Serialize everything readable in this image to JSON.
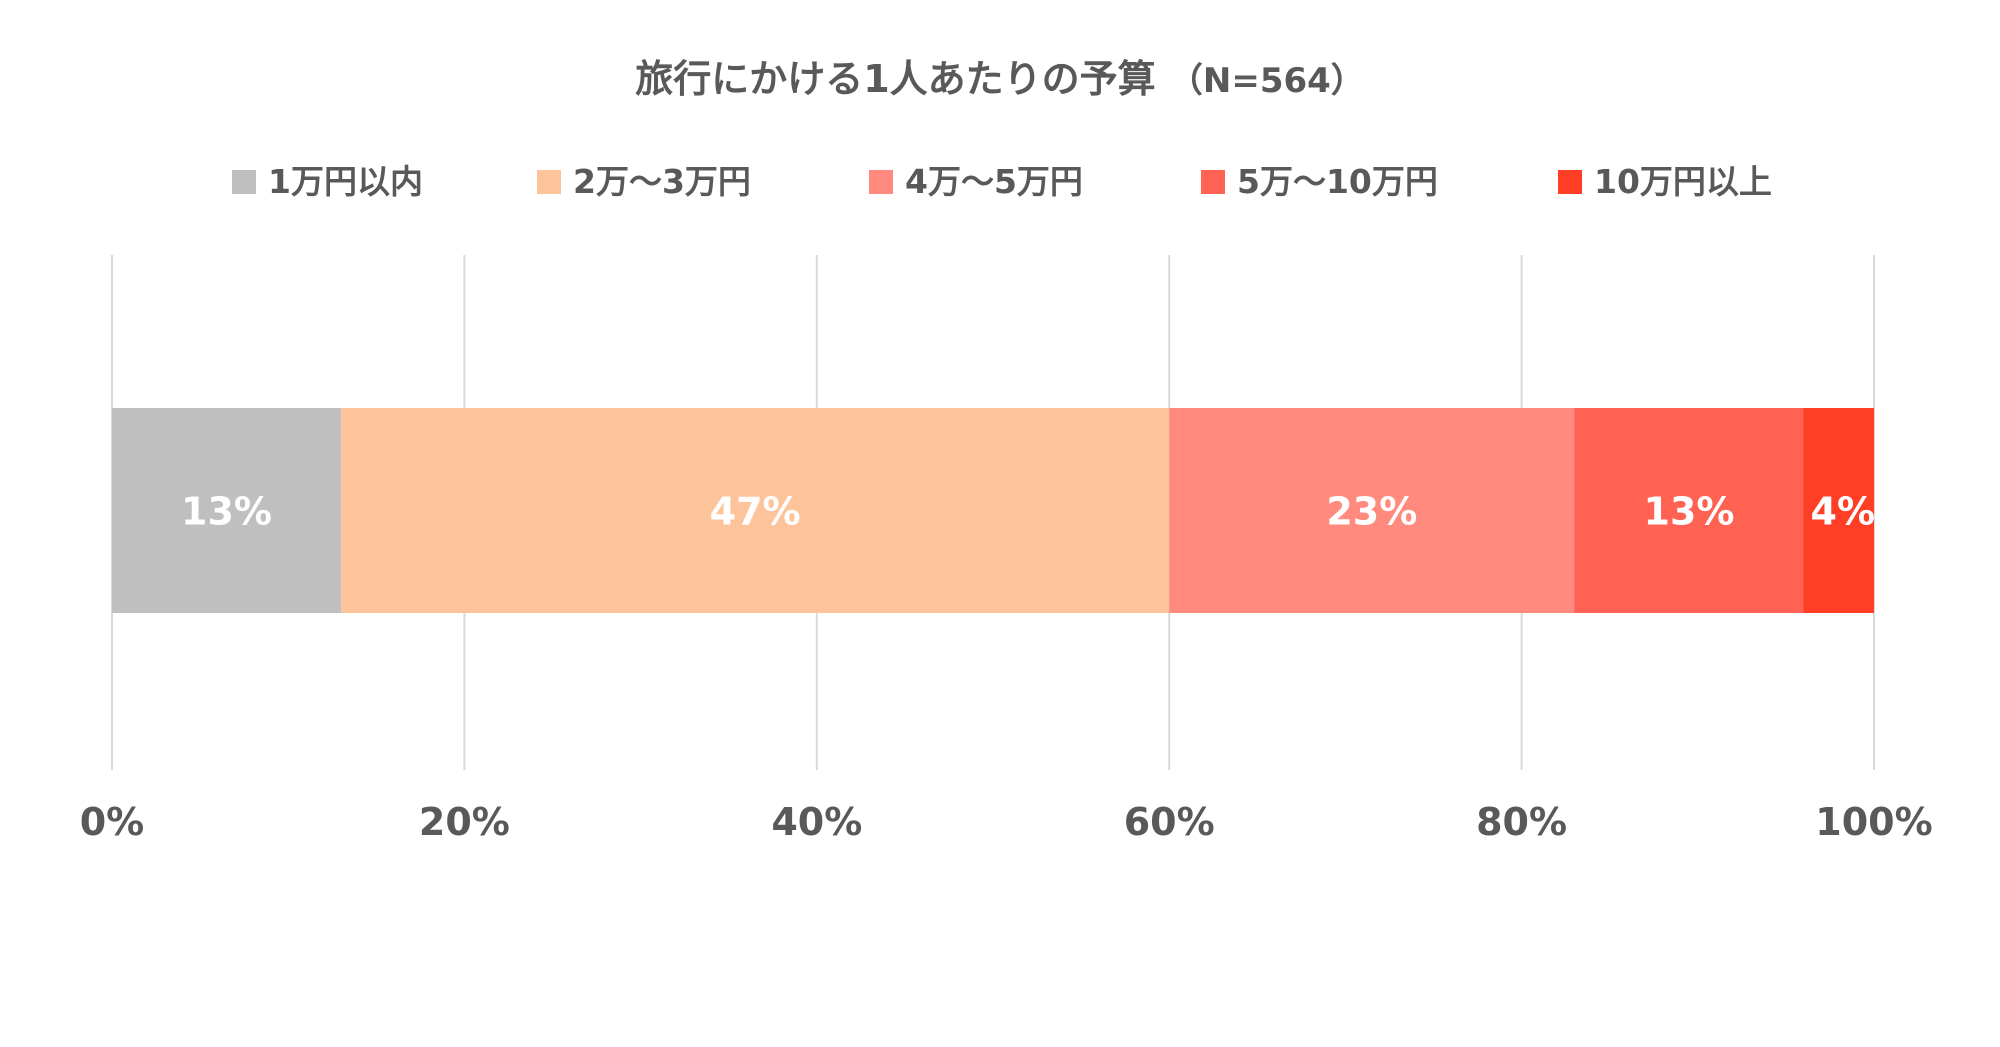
{
  "chart_data": {
    "type": "bar",
    "orientation": "horizontal",
    "stacked": "percent",
    "title": "旅行にかける1人あたりの予算",
    "title_note": "（N=564）",
    "categories": [
      ""
    ],
    "series": [
      {
        "name": "1万円以内",
        "values": [
          13
        ],
        "label": "13%",
        "color": "#bfbfbf"
      },
      {
        "name": "2万～3万円",
        "values": [
          47
        ],
        "label": "47%",
        "color": "#fdc49b"
      },
      {
        "name": "4万～5万円",
        "values": [
          23
        ],
        "label": "23%",
        "color": "#ff8a7d"
      },
      {
        "name": "5万～10万円",
        "values": [
          13
        ],
        "label": "13%",
        "color": "#ff6152"
      },
      {
        "name": "10万円以上",
        "values": [
          4
        ],
        "label": "4%",
        "color": "#ff3e26"
      }
    ],
    "xlim": [
      0,
      100
    ],
    "x_ticks": [
      "0%",
      "20%",
      "40%",
      "60%",
      "80%",
      "100%"
    ],
    "grid": true,
    "legend_position": "top",
    "xlabel": "",
    "ylabel": ""
  }
}
